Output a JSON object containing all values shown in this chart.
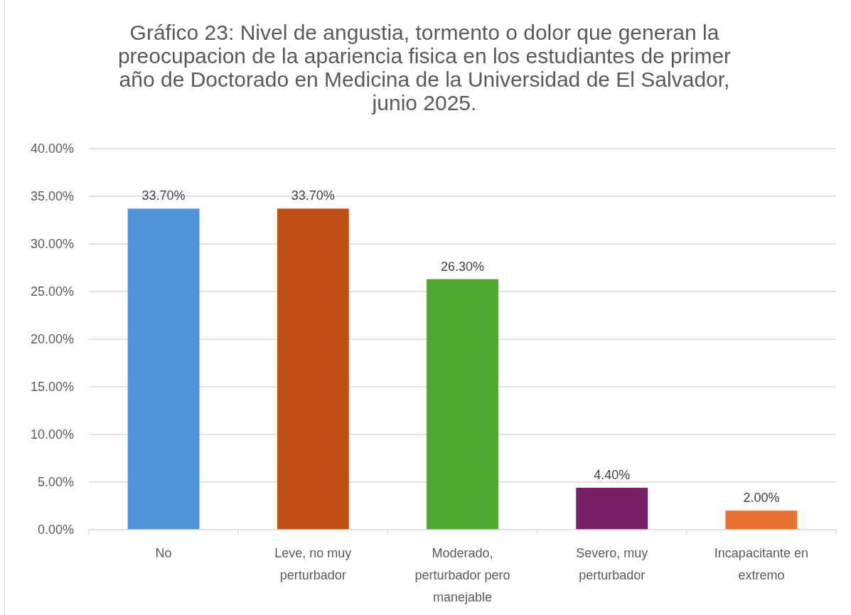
{
  "chart_data": {
    "type": "bar",
    "title": "Gráfico 23: Nivel de angustia, tormento o dolor que generan la preocupacion de la apariencia fisica en los estudiantes de primer año de Doctorado en Medicina de la Universidad de El Salvador, junio 2025.",
    "categories": [
      "No",
      "Leve, no muy perturbador",
      "Moderado, perturbador pero manejable",
      "Severo, muy perturbador",
      "Incapacitante en extremo"
    ],
    "values": [
      33.7,
      33.7,
      26.3,
      4.4,
      2.0
    ],
    "colors": [
      "#4f93d8",
      "#c04f15",
      "#4ea72e",
      "#772069",
      "#e97132"
    ],
    "value_labels": [
      "33.70%",
      "33.70%",
      "26.30%",
      "4.40%",
      "2.00%"
    ],
    "ylim": [
      0,
      40
    ],
    "yticks": [
      {
        "value": 0,
        "label": "0.00%"
      },
      {
        "value": 5,
        "label": "5.00%"
      },
      {
        "value": 10,
        "label": "10.00%"
      },
      {
        "value": 15,
        "label": "15.00%"
      },
      {
        "value": 20,
        "label": "20.00%"
      },
      {
        "value": 25,
        "label": "25.00%"
      },
      {
        "value": 30,
        "label": "30.00%"
      },
      {
        "value": 35,
        "label": "35.00%"
      },
      {
        "value": 40,
        "label": "40.00%"
      }
    ],
    "grid": "y"
  }
}
